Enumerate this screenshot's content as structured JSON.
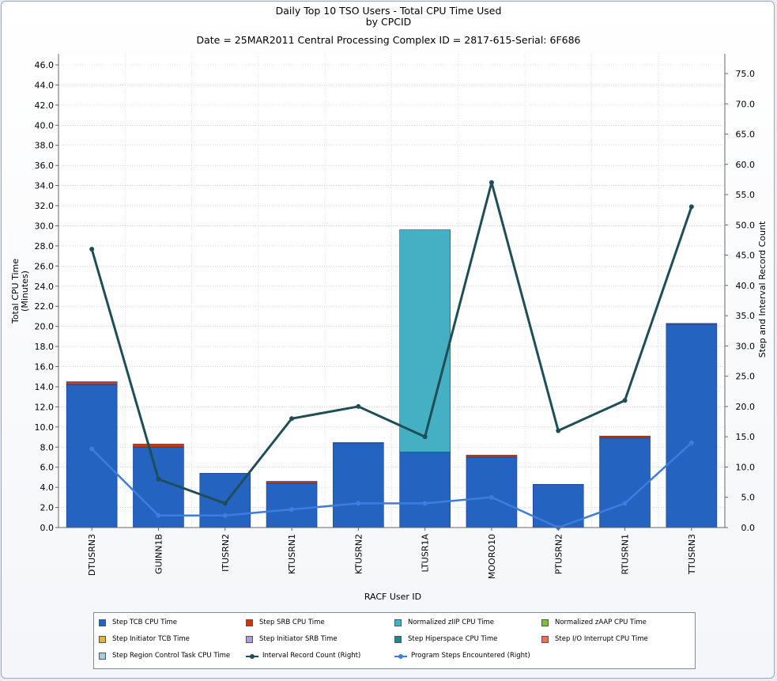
{
  "titles": {
    "line1": "Daily Top 10 TSO Users - Total CPU Time Used",
    "line2": "by CPCID",
    "line3": "Date = 25MAR2011  Central Processing Complex ID = 2817-615-Serial: 6F686"
  },
  "chart_data": {
    "type": "bar",
    "stacked": true,
    "categories": [
      "DTUSRN3",
      "GUINN1B",
      "ITUSRN2",
      "KTUSRN1",
      "KTUSRN2",
      "LTUSR1A",
      "MOORO10",
      "PTUSRN2",
      "RTUSRN1",
      "TTUSRN3"
    ],
    "xlabel": "RACF User ID",
    "ylabel": "Total CPU Time",
    "ylabel_sub": "(Minutes)",
    "ylabel_right": "Step and Interval Record Count",
    "ylim": [
      0,
      46
    ],
    "ylim_right": [
      0,
      75
    ],
    "yticks": [
      "0.0",
      "2.0",
      "4.0",
      "6.0",
      "8.0",
      "10.0",
      "12.0",
      "14.0",
      "16.0",
      "18.0",
      "20.0",
      "22.0",
      "24.0",
      "26.0",
      "28.0",
      "30.0",
      "32.0",
      "34.0",
      "36.0",
      "38.0",
      "40.0",
      "42.0",
      "44.0",
      "46.0"
    ],
    "yticks_right": [
      "0.0",
      "5.0",
      "10.0",
      "15.0",
      "20.0",
      "25.0",
      "30.0",
      "35.0",
      "40.0",
      "45.0",
      "50.0",
      "55.0",
      "60.0",
      "65.0",
      "70.0",
      "75.0"
    ],
    "series": [
      {
        "name": "Step TCB CPU Time",
        "color": "#2563c0",
        "axis": "left",
        "values": [
          14.2,
          8.0,
          5.4,
          4.4,
          8.4,
          7.5,
          7.0,
          4.3,
          8.9,
          20.2
        ]
      },
      {
        "name": "Step SRB CPU Time",
        "color": "#c83a0a",
        "axis": "left",
        "values": [
          0.3,
          0.3,
          0.0,
          0.2,
          0.05,
          0.0,
          0.2,
          0.0,
          0.2,
          0.1
        ]
      },
      {
        "name": "Normalized zIIP CPU Time",
        "color": "#45b0c4",
        "axis": "left",
        "values": [
          0,
          0,
          0,
          0,
          0,
          22.1,
          0,
          0,
          0,
          0
        ]
      }
    ],
    "lines": [
      {
        "name": "Interval Record Count (Right)",
        "color": "#1e4e58",
        "axis": "right",
        "values": [
          46,
          8,
          4,
          18,
          20,
          15,
          57,
          16,
          21,
          53
        ]
      },
      {
        "name": "Program Steps Encountered (Right)",
        "color": "#3b7de0",
        "axis": "right",
        "values": [
          13,
          2,
          2,
          3,
          4,
          4,
          5,
          0,
          4,
          14
        ]
      }
    ]
  },
  "legend": [
    {
      "label": "Step TCB CPU Time",
      "color": "#2563c0",
      "kind": "box"
    },
    {
      "label": "Step SRB CPU Time",
      "color": "#c83a0a",
      "kind": "box"
    },
    {
      "label": "Normalized zIIP CPU Time",
      "color": "#45b0c4",
      "kind": "box"
    },
    {
      "label": "Normalized zAAP CPU Time",
      "color": "#7bc043",
      "kind": "box"
    },
    {
      "label": "Step Initiator TCB Time",
      "color": "#e8b040",
      "kind": "box"
    },
    {
      "label": "Step Initiator SRB Time",
      "color": "#b09ae8",
      "kind": "box"
    },
    {
      "label": "Step Hiperspace CPU Time",
      "color": "#1a8a8a",
      "kind": "box"
    },
    {
      "label": "Step I/O Interrupt CPU Time",
      "color": "#f07050",
      "kind": "box"
    },
    {
      "label": "Step Region Control Task CPU Time",
      "color": "#a0d0e0",
      "kind": "box"
    },
    {
      "label": "Interval Record Count (Right)",
      "color": "#1e4e58",
      "kind": "line"
    },
    {
      "label": "Program Steps Encountered (Right)",
      "color": "#3b7de0",
      "kind": "line"
    }
  ]
}
